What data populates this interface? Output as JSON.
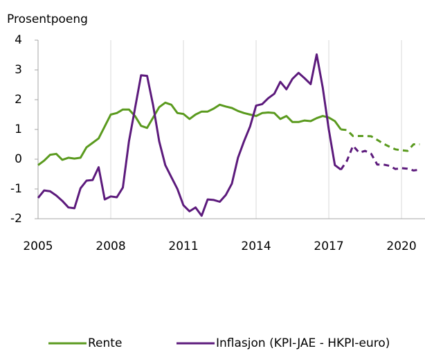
{
  "chart_data": {
    "type": "line",
    "y_axis_label": "Prosentpoeng",
    "x": [
      2005,
      2005.25,
      2005.5,
      2005.75,
      2006,
      2006.25,
      2006.5,
      2006.75,
      2007,
      2007.25,
      2007.5,
      2007.75,
      2008,
      2008.25,
      2008.5,
      2008.75,
      2009,
      2009.25,
      2009.5,
      2009.75,
      2010,
      2010.25,
      2010.5,
      2010.75,
      2011,
      2011.25,
      2011.5,
      2011.75,
      2012,
      2012.25,
      2012.5,
      2012.75,
      2013,
      2013.25,
      2013.5,
      2013.75,
      2014,
      2014.25,
      2014.5,
      2014.75,
      2015,
      2015.25,
      2015.5,
      2015.75,
      2016,
      2016.25,
      2016.5,
      2016.75,
      2017,
      2017.25,
      2017.5,
      2017.75,
      2018,
      2018.25,
      2018.5,
      2018.75,
      2019,
      2019.25,
      2019.5,
      2019.75,
      2020,
      2020.25,
      2020.5,
      2020.75
    ],
    "dashed_from_x": 2017.5,
    "series": [
      {
        "name": "Rente",
        "color": "#5a9a1e",
        "values": [
          -0.2,
          -0.05,
          0.15,
          0.18,
          -0.02,
          0.05,
          0.02,
          0.05,
          0.4,
          0.55,
          0.7,
          1.1,
          1.5,
          1.55,
          1.67,
          1.67,
          1.45,
          1.12,
          1.05,
          1.4,
          1.75,
          1.9,
          1.83,
          1.55,
          1.52,
          1.35,
          1.5,
          1.6,
          1.6,
          1.7,
          1.83,
          1.77,
          1.72,
          1.62,
          1.55,
          1.5,
          1.45,
          1.55,
          1.57,
          1.55,
          1.35,
          1.45,
          1.25,
          1.25,
          1.3,
          1.28,
          1.38,
          1.45,
          1.4,
          1.28,
          1.0,
          0.98,
          0.78,
          0.78,
          0.78,
          0.77,
          0.65,
          0.52,
          0.42,
          0.33,
          0.3,
          0.28,
          0.5,
          0.5
        ]
      },
      {
        "name": "Inflasjon (KPI-JAE - HKPI-euro)",
        "color": "#5c1a7c",
        "values": [
          -1.3,
          -1.05,
          -1.08,
          -1.22,
          -1.4,
          -1.62,
          -1.65,
          -0.98,
          -0.72,
          -0.7,
          -0.27,
          -1.35,
          -1.25,
          -1.28,
          -0.95,
          0.6,
          1.7,
          2.82,
          2.8,
          1.8,
          0.6,
          -0.2,
          -0.6,
          -1.0,
          -1.55,
          -1.75,
          -1.62,
          -1.9,
          -1.35,
          -1.37,
          -1.43,
          -1.2,
          -0.82,
          0.05,
          0.6,
          1.1,
          1.8,
          1.85,
          2.05,
          2.2,
          2.6,
          2.35,
          2.7,
          2.9,
          2.72,
          2.52,
          3.52,
          2.4,
          1.0,
          -0.2,
          -0.35,
          -0.05,
          0.45,
          0.22,
          0.28,
          0.18,
          -0.18,
          -0.18,
          -0.22,
          -0.33,
          -0.3,
          -0.32,
          -0.38,
          -0.35
        ]
      }
    ],
    "xlim": [
      2005,
      2020.97
    ],
    "xticks": [
      2005,
      2008,
      2011,
      2014,
      2017,
      2020
    ],
    "ylim": [
      -2,
      4
    ],
    "yticks": [
      -2,
      -1,
      0,
      1,
      2,
      3,
      4
    ],
    "grid": true,
    "legend": "bottom"
  }
}
